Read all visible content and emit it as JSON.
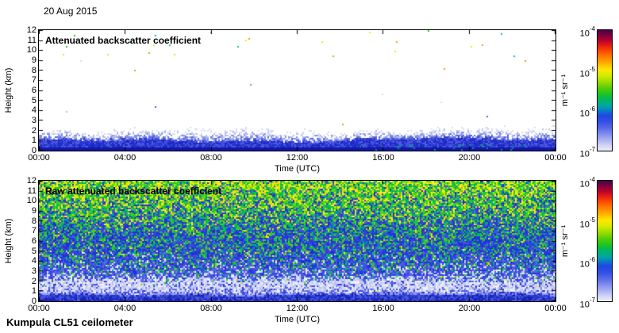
{
  "page": {
    "date_label": "20 Aug 2015",
    "footer": "Kumpula CL51 ceilometer"
  },
  "chart_data": {
    "type": "heatmap",
    "title": "20 Aug 2015",
    "station": "Kumpula CL51 ceilometer",
    "x_axis": {
      "label": "Time (UTC)",
      "ticks": [
        "00:00",
        "04:00",
        "08:00",
        "12:00",
        "16:00",
        "20:00",
        "00:00"
      ],
      "range_hours": [
        0,
        24
      ]
    },
    "y_axis": {
      "label": "Height (km)",
      "ticks": [
        "0",
        "1",
        "2",
        "3",
        "4",
        "5",
        "6",
        "7",
        "8",
        "9",
        "10",
        "11",
        "12"
      ],
      "range_km": [
        0,
        12
      ]
    },
    "colorbar": {
      "unit": "m⁻¹ sr⁻¹",
      "scale": "log",
      "range": [
        "1e-7",
        "1e-4"
      ],
      "ticks": [
        {
          "base": "10",
          "exp": "-4"
        },
        {
          "base": "10",
          "exp": "-5"
        },
        {
          "base": "10",
          "exp": "-6"
        },
        {
          "base": "10",
          "exp": "-7"
        }
      ],
      "gradient": [
        [
          "#4b0048",
          0
        ],
        [
          "#79003f",
          4
        ],
        [
          "#ae0030",
          8
        ],
        [
          "#dd1618",
          12
        ],
        [
          "#f83c00",
          16
        ],
        [
          "#ff7100",
          21
        ],
        [
          "#ffa000",
          26
        ],
        [
          "#ffcc00",
          30
        ],
        [
          "#ffe800",
          33
        ],
        [
          "#d2ea00",
          38
        ],
        [
          "#9bdc00",
          43
        ],
        [
          "#55cd08",
          48
        ],
        [
          "#1fc421",
          53
        ],
        [
          "#00b859",
          57
        ],
        [
          "#00ac8c",
          61
        ],
        [
          "#00a0ab",
          64
        ],
        [
          "#0b78cc",
          67
        ],
        [
          "#1f47e0",
          71
        ],
        [
          "#3450e4",
          76
        ],
        [
          "#5668e8",
          81
        ],
        [
          "#7f8bee",
          86
        ],
        [
          "#a9b0f2",
          91
        ],
        [
          "#d3d6f7",
          96
        ],
        [
          "#edeefb",
          100
        ]
      ]
    },
    "noise_seed": 1337,
    "panels": [
      {
        "id": "attenuated",
        "title": "Attenuated backscatter coefficient",
        "profile": "filtered",
        "description": "Mostly clear air (white) above ~2 km; blue aerosol boundary layer below ~2 km, solid blue below ~1 km; sparse colored noise specks near 9.5-12 km.",
        "render": {
          "surface_top_km": 0.95,
          "speckle_top_km": 2.25,
          "surface_colors": [
            "#2531cf",
            "#3a46d8",
            "#1c28c0",
            "#4f5ce0"
          ],
          "surface_dark": "#1018a8",
          "teal_accent": "#00997d",
          "speckle_colors": [
            "#2a38d2",
            "#5563e0",
            "#8490ea",
            "#b3baf0",
            "#d8dcf6"
          ],
          "aloft_colors": [
            "#2fc22f",
            "#ffe400",
            "#ff9900",
            "#00c8a8",
            "#8cd200"
          ],
          "aloft_min_km": 9.3,
          "aloft_density_high": 0.0045,
          "aloft_density_low": 0.0006
        }
      },
      {
        "id": "raw",
        "title": "Raw attenuated backscatter coefficient",
        "profile": "raw",
        "description": "Full-field speckle noise: yellow/green at 7-12 km, green-blue mix 3-7 km, blue with white speckle 2-5 km, whitish band near 1-2 km, solid blue surface layer below ~0.8 km.",
        "render": {
          "surface_top_km": 0.8,
          "white_band_center_km": 1.45,
          "white_band_sigma_km": 0.6,
          "surface_colors": [
            "#202ec8",
            "#3542d6",
            "#4c59e0",
            "#1722b4"
          ],
          "surface_light": "#8e99ee",
          "blue_colors": [
            "#1e2fd6",
            "#2c3cdc",
            "#4150e2",
            "#5a68e8",
            "#7d89ee"
          ],
          "green_colors": [
            "#1ec832",
            "#00bb55",
            "#44d411",
            "#00ab7a",
            "#66d90a"
          ],
          "yellow_colors": [
            "#e8ee00",
            "#ffd900",
            "#c3e800",
            "#ffee33"
          ],
          "white_colors": [
            "#eceef9",
            "#d6d9f4",
            "#bcc2f0"
          ],
          "cyan_color": "#00a8b4"
        }
      }
    ]
  }
}
